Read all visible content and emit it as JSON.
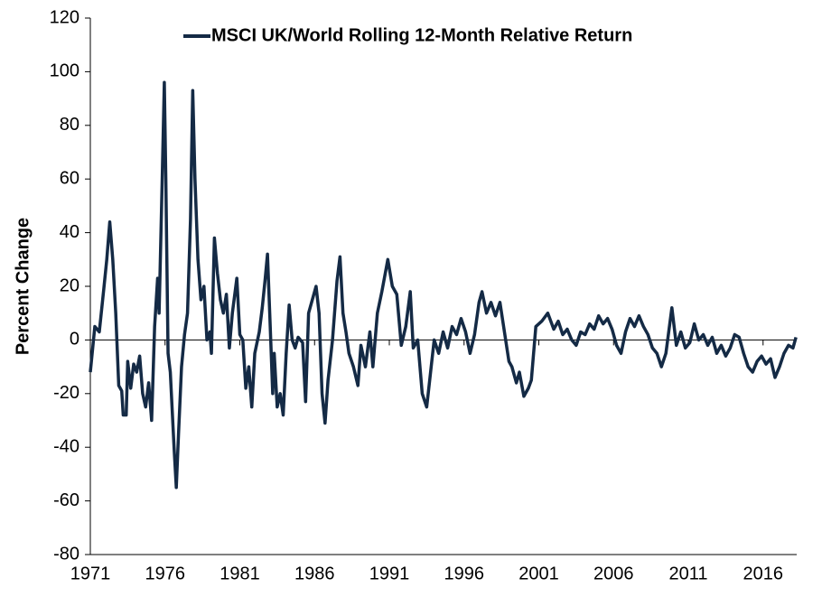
{
  "chart_data": {
    "type": "line",
    "y_label": "Percent Change",
    "xlim": [
      1971,
      2018.25
    ],
    "xticks": [
      1971,
      1976,
      1981,
      1986,
      1991,
      1996,
      2001,
      2006,
      2011,
      2016
    ],
    "ylim": [
      -80,
      120
    ],
    "yticks": [
      -80,
      -60,
      -40,
      -20,
      0,
      20,
      40,
      60,
      80,
      100,
      120
    ],
    "grid": false,
    "legend": "top",
    "x": [
      1971.0,
      1971.3,
      1971.6,
      1971.9,
      1972.1,
      1972.3,
      1972.5,
      1972.7,
      1972.9,
      1973.1,
      1973.2,
      1973.4,
      1973.5,
      1973.7,
      1973.9,
      1974.1,
      1974.3,
      1974.5,
      1974.7,
      1974.9,
      1975.1,
      1975.3,
      1975.5,
      1975.6,
      1975.8,
      1975.95,
      1976.05,
      1976.2,
      1976.35,
      1976.6,
      1976.75,
      1976.9,
      1977.1,
      1977.3,
      1977.5,
      1977.7,
      1977.85,
      1978.0,
      1978.2,
      1978.4,
      1978.6,
      1978.8,
      1979.0,
      1979.1,
      1979.3,
      1979.5,
      1979.7,
      1979.9,
      1980.1,
      1980.3,
      1980.5,
      1980.8,
      1981.0,
      1981.2,
      1981.4,
      1981.6,
      1981.8,
      1982.0,
      1982.3,
      1982.5,
      1982.7,
      1982.85,
      1983.0,
      1983.2,
      1983.3,
      1983.5,
      1983.7,
      1983.9,
      1984.1,
      1984.3,
      1984.5,
      1984.7,
      1984.9,
      1985.2,
      1985.4,
      1985.6,
      1985.9,
      1986.1,
      1986.3,
      1986.5,
      1986.7,
      1986.9,
      1987.2,
      1987.5,
      1987.7,
      1987.9,
      1988.1,
      1988.3,
      1988.6,
      1988.9,
      1989.1,
      1989.4,
      1989.7,
      1989.9,
      1990.2,
      1990.5,
      1990.9,
      1991.2,
      1991.5,
      1991.8,
      1992.1,
      1992.4,
      1992.6,
      1992.9,
      1993.2,
      1993.5,
      1993.8,
      1994.0,
      1994.3,
      1994.6,
      1994.9,
      1995.2,
      1995.5,
      1995.8,
      1996.1,
      1996.4,
      1996.7,
      1997.0,
      1997.2,
      1997.5,
      1997.8,
      1998.1,
      1998.4,
      1998.7,
      1999.0,
      1999.2,
      1999.5,
      1999.7,
      2000.0,
      2000.3,
      2000.5,
      2000.8,
      2001.2,
      2001.6,
      2002.0,
      2002.3,
      2002.6,
      2002.9,
      2003.2,
      2003.5,
      2003.8,
      2004.1,
      2004.4,
      2004.7,
      2005.0,
      2005.3,
      2005.6,
      2005.9,
      2006.2,
      2006.5,
      2006.8,
      2007.1,
      2007.4,
      2007.7,
      2008.0,
      2008.3,
      2008.6,
      2008.9,
      2009.2,
      2009.5,
      2009.9,
      2010.2,
      2010.5,
      2010.8,
      2011.1,
      2011.4,
      2011.7,
      2012.0,
      2012.3,
      2012.6,
      2012.9,
      2013.2,
      2013.5,
      2013.8,
      2014.1,
      2014.4,
      2014.7,
      2015.0,
      2015.3,
      2015.6,
      2015.9,
      2016.2,
      2016.5,
      2016.8,
      2017.1,
      2017.4,
      2017.7,
      2018.0,
      2018.2
    ],
    "series": [
      {
        "name": "MSCI UK/World Rolling 12-Month Relative Return",
        "color": "#142a45",
        "values": [
          -12,
          5,
          3,
          19,
          30,
          44,
          30,
          10,
          -17,
          -19,
          -28,
          -28,
          -8,
          -18,
          -9,
          -12,
          -6,
          -20,
          -25,
          -16,
          -30,
          5,
          23,
          10,
          58,
          96,
          60,
          -5,
          -12,
          -40,
          -55,
          -35,
          -10,
          2,
          10,
          45,
          93,
          60,
          30,
          15,
          20,
          0,
          3,
          -5,
          38,
          25,
          15,
          10,
          17,
          -3,
          10,
          23,
          2,
          0,
          -18,
          -10,
          -25,
          -5,
          3,
          12,
          23,
          32,
          10,
          -20,
          -5,
          -25,
          -20,
          -28,
          -5,
          13,
          0,
          -3,
          1,
          -1,
          -23,
          10,
          16,
          20,
          10,
          -20,
          -31,
          -15,
          0,
          22,
          31,
          10,
          3,
          -5,
          -10,
          -17,
          -2,
          -10,
          3,
          -10,
          10,
          18,
          30,
          20,
          17,
          -2,
          5,
          18,
          -3,
          0,
          -20,
          -25,
          -10,
          0,
          -5,
          3,
          -3,
          5,
          2,
          8,
          3,
          -5,
          2,
          14,
          18,
          10,
          14,
          9,
          14,
          3,
          -8,
          -10,
          -16,
          -12,
          -21,
          -18,
          -15,
          5,
          7,
          10,
          4,
          7,
          2,
          4,
          0,
          -2,
          3,
          2,
          6,
          4,
          9,
          6,
          8,
          4,
          -2,
          -5,
          3,
          8,
          5,
          9,
          5,
          2,
          -3,
          -5,
          -10,
          -5,
          12,
          -2,
          3,
          -3,
          -1,
          6,
          0,
          2,
          -2,
          1,
          -5,
          -2,
          -6,
          -3,
          2,
          1,
          -5,
          -10,
          -12,
          -8,
          -6,
          -9,
          -7,
          -14,
          -10,
          -5,
          -2,
          -3,
          1
        ]
      }
    ]
  }
}
